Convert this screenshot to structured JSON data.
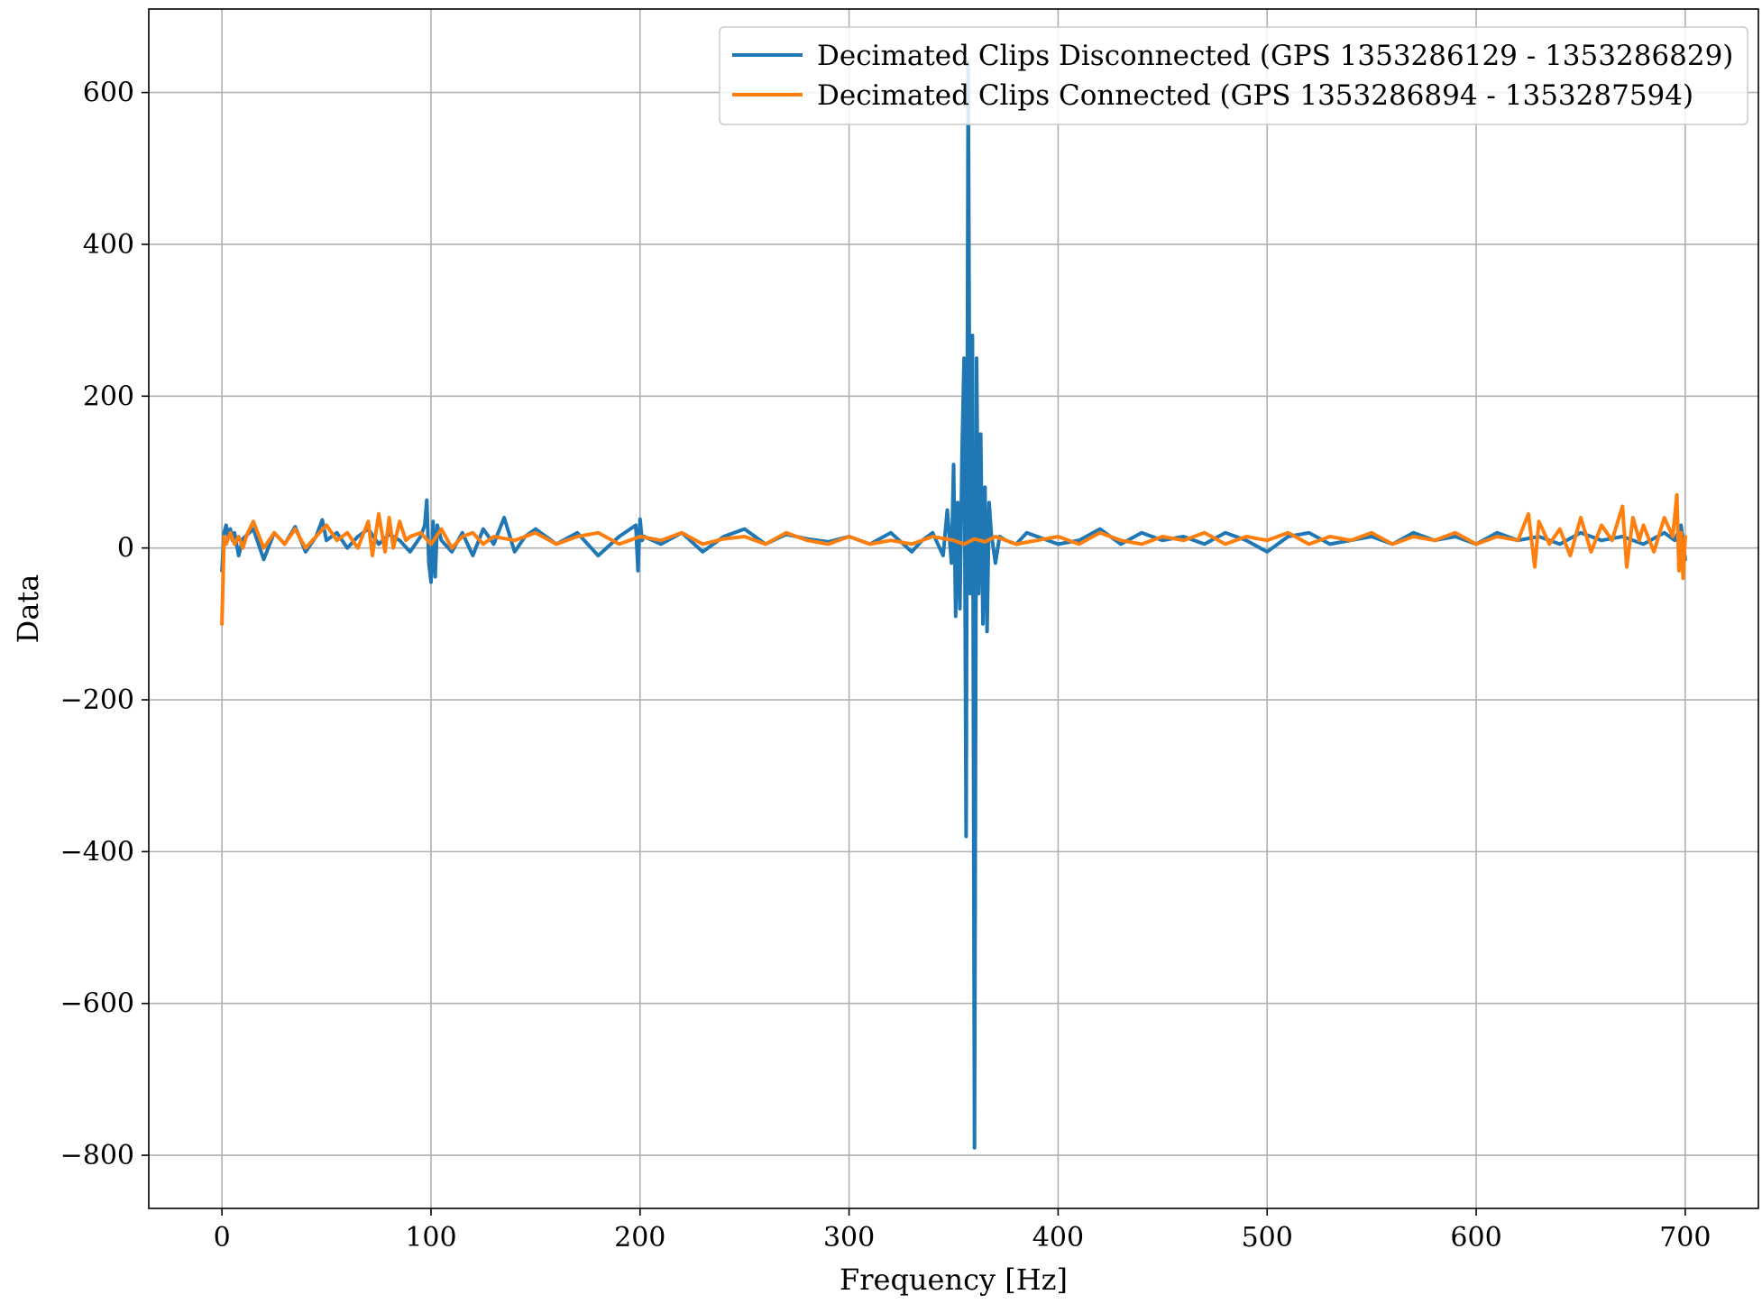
{
  "chart_data": {
    "type": "line",
    "title": "",
    "xlabel": "Frequency [Hz]",
    "ylabel": "Data",
    "xlim": [
      -35,
      735
    ],
    "ylim": [
      -870,
      710
    ],
    "xticks": [
      0,
      100,
      200,
      300,
      400,
      500,
      600,
      700
    ],
    "yticks": [
      600,
      400,
      200,
      0,
      -200,
      -400,
      -600,
      -800
    ],
    "xtick_labels": [
      "0",
      "100",
      "200",
      "300",
      "400",
      "500",
      "600",
      "700"
    ],
    "ytick_labels": [
      "600",
      "400",
      "200",
      "0",
      "−200",
      "−400",
      "−600",
      "−800"
    ],
    "grid": true,
    "legend_position": "top-right",
    "series": [
      {
        "name": "Decimated Clips Disconnected (GPS 1353286129 - 1353286829)",
        "color": "#1f77b4",
        "x": [
          0,
          1,
          2,
          3,
          4,
          5,
          6,
          8,
          10,
          15,
          20,
          25,
          30,
          35,
          40,
          45,
          48,
          50,
          55,
          60,
          65,
          70,
          75,
          80,
          85,
          90,
          95,
          97,
          98,
          99,
          100,
          101,
          102,
          103,
          105,
          110,
          115,
          120,
          125,
          130,
          135,
          140,
          145,
          150,
          160,
          170,
          180,
          190,
          198,
          199,
          200,
          201,
          202,
          210,
          220,
          230,
          240,
          250,
          260,
          270,
          280,
          290,
          300,
          310,
          320,
          330,
          335,
          340,
          345,
          347,
          349,
          350,
          351,
          352,
          353,
          354,
          355,
          356,
          357,
          358,
          359,
          360,
          361,
          362,
          363,
          364,
          365,
          366,
          367,
          368,
          370,
          372,
          375,
          380,
          385,
          390,
          400,
          410,
          420,
          430,
          440,
          450,
          460,
          470,
          480,
          490,
          500,
          510,
          520,
          530,
          540,
          550,
          560,
          570,
          580,
          590,
          600,
          610,
          620,
          630,
          640,
          650,
          660,
          670,
          680,
          690,
          695,
          698,
          700
        ],
        "y": [
          -30,
          20,
          30,
          15,
          25,
          10,
          20,
          -10,
          12,
          25,
          -15,
          20,
          5,
          28,
          -5,
          15,
          37,
          10,
          20,
          0,
          15,
          25,
          5,
          18,
          10,
          -5,
          15,
          30,
          63,
          -20,
          -45,
          35,
          -38,
          30,
          10,
          -5,
          20,
          -10,
          25,
          5,
          40,
          -5,
          15,
          25,
          5,
          20,
          -10,
          15,
          30,
          -30,
          38,
          10,
          15,
          5,
          20,
          -5,
          15,
          25,
          5,
          18,
          12,
          8,
          15,
          5,
          20,
          -5,
          10,
          20,
          -10,
          50,
          -20,
          110,
          -90,
          60,
          -80,
          120,
          250,
          -380,
          640,
          -60,
          280,
          -790,
          250,
          -60,
          150,
          -100,
          80,
          -110,
          60,
          20,
          -20,
          15,
          10,
          5,
          20,
          15,
          5,
          10,
          25,
          5,
          20,
          10,
          15,
          5,
          20,
          10,
          -5,
          15,
          20,
          5,
          10,
          15,
          5,
          20,
          10,
          15,
          5,
          20,
          10,
          15,
          5,
          20,
          10,
          15,
          5,
          20,
          10,
          30,
          -15
        ]
      },
      {
        "name": "Decimated Clips Connected (GPS 1353286894 - 1353287594)",
        "color": "#ff7f0e",
        "x": [
          0,
          1,
          2,
          4,
          6,
          8,
          10,
          12,
          15,
          20,
          25,
          30,
          35,
          40,
          45,
          50,
          55,
          60,
          65,
          70,
          72,
          75,
          78,
          80,
          82,
          85,
          88,
          90,
          95,
          100,
          105,
          110,
          115,
          120,
          125,
          130,
          140,
          150,
          160,
          170,
          180,
          190,
          200,
          210,
          220,
          230,
          240,
          250,
          260,
          270,
          280,
          290,
          300,
          310,
          320,
          330,
          340,
          350,
          355,
          360,
          365,
          370,
          380,
          390,
          400,
          410,
          420,
          430,
          440,
          450,
          460,
          470,
          480,
          490,
          500,
          510,
          520,
          530,
          540,
          550,
          560,
          570,
          580,
          590,
          600,
          610,
          620,
          625,
          628,
          630,
          635,
          640,
          645,
          650,
          655,
          660,
          665,
          670,
          672,
          675,
          678,
          680,
          685,
          690,
          694,
          696,
          697,
          698,
          699,
          700
        ],
        "y": [
          -100,
          15,
          5,
          20,
          5,
          15,
          0,
          18,
          35,
          0,
          20,
          5,
          25,
          0,
          15,
          30,
          10,
          20,
          0,
          35,
          -10,
          45,
          -5,
          40,
          0,
          35,
          10,
          15,
          20,
          5,
          25,
          0,
          15,
          20,
          5,
          15,
          10,
          20,
          5,
          15,
          20,
          5,
          15,
          10,
          20,
          5,
          12,
          15,
          5,
          20,
          10,
          5,
          15,
          5,
          10,
          5,
          15,
          10,
          5,
          12,
          8,
          15,
          5,
          10,
          15,
          5,
          20,
          10,
          5,
          15,
          10,
          20,
          5,
          15,
          10,
          20,
          5,
          15,
          10,
          20,
          5,
          15,
          10,
          20,
          5,
          15,
          10,
          45,
          -25,
          35,
          5,
          25,
          -10,
          40,
          -5,
          30,
          10,
          55,
          -25,
          40,
          10,
          30,
          -5,
          40,
          15,
          70,
          -30,
          20,
          -40,
          15
        ]
      }
    ]
  }
}
